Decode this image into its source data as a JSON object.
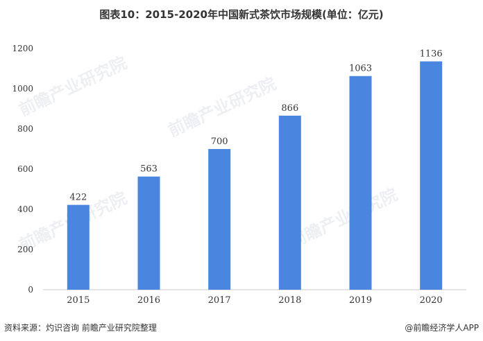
{
  "title": "图表10：2015-2020年中国新式茶饮市场规模(单位：亿元)",
  "watermark": "前瞻产业研究院",
  "footer": {
    "source": "资料来源：灼识咨询 前瞻产业研究院整理",
    "brand": "@前瞻经济学人APP"
  },
  "chart_data": {
    "type": "bar",
    "categories": [
      "2015",
      "2016",
      "2017",
      "2018",
      "2019",
      "2020"
    ],
    "values": [
      422,
      563,
      700,
      866,
      1063,
      1136
    ],
    "data_labels": [
      "422",
      "563",
      "700",
      "866",
      "1063",
      "1136"
    ],
    "yticks": [
      0,
      200,
      400,
      600,
      800,
      1000,
      1200
    ],
    "ylim": [
      0,
      1200
    ],
    "grid": false,
    "bar_color": "#4a86e0",
    "title": "图表10：2015-2020年中国新式茶饮市场规模(单位：亿元)"
  }
}
